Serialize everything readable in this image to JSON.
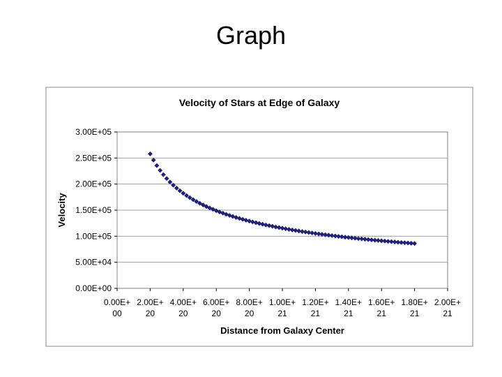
{
  "slide": {
    "title": "Graph"
  },
  "chart_data": {
    "type": "scatter",
    "title": "Velocity of Stars at Edge of Galaxy",
    "xlabel": "Distance from Galaxy Center",
    "ylabel": "Velocity",
    "xlim": [
      0,
      2e+21
    ],
    "ylim": [
      0,
      300000
    ],
    "grid": "horizontal",
    "legend": "none",
    "marker": "diamond",
    "marker_color": "#1f1f7a",
    "x_tick_labels": [
      [
        "0.00E+",
        "00"
      ],
      [
        "2.00E+",
        "20"
      ],
      [
        "4.00E+",
        "20"
      ],
      [
        "6.00E+",
        "20"
      ],
      [
        "8.00E+",
        "20"
      ],
      [
        "1.00E+",
        "21"
      ],
      [
        "1.20E+",
        "21"
      ],
      [
        "1.40E+",
        "21"
      ],
      [
        "1.60E+",
        "21"
      ],
      [
        "1.80E+",
        "21"
      ],
      [
        "2.00E+",
        "21"
      ]
    ],
    "x_tick_values": [
      0,
      2e+20,
      4e+20,
      6e+20,
      8e+20,
      1e+21,
      1.2e+21,
      1.4e+21,
      1.6e+21,
      1.8e+21,
      2e+21
    ],
    "y_tick_labels": [
      "0.00E+00",
      "5.00E+04",
      "1.00E+05",
      "1.50E+05",
      "2.00E+05",
      "2.50E+05",
      "3.00E+05"
    ],
    "y_tick_values": [
      0,
      50000,
      100000,
      150000,
      200000,
      250000,
      300000
    ],
    "series": [
      {
        "x_start": 2e+20,
        "x_end": 1.8e+21,
        "x_step": 2e+19,
        "velocity_at_start": 258000,
        "relation": "v proportional to 1/sqrt(distance)"
      }
    ]
  }
}
